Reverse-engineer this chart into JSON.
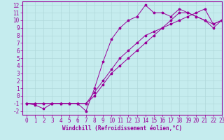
{
  "xlabel": "Windchill (Refroidissement éolien,°C)",
  "ylabel": "",
  "xlim": [
    -0.5,
    23
  ],
  "ylim": [
    -2.5,
    12.5
  ],
  "xticks": [
    0,
    1,
    2,
    3,
    4,
    5,
    6,
    7,
    8,
    9,
    10,
    11,
    12,
    13,
    14,
    15,
    16,
    17,
    18,
    19,
    20,
    21,
    22,
    23
  ],
  "yticks": [
    -2,
    -1,
    0,
    1,
    2,
    3,
    4,
    5,
    6,
    7,
    8,
    9,
    10,
    11,
    12
  ],
  "bg_color": "#c5ecee",
  "line_color": "#990099",
  "grid_color": "#b0d8da",
  "line1_x": [
    0,
    1,
    2,
    3,
    4,
    5,
    6,
    7,
    8,
    9,
    10,
    11,
    12,
    13,
    14,
    15,
    16,
    17,
    18,
    19,
    20,
    21,
    22,
    23
  ],
  "line1_y": [
    -1,
    -1.2,
    -1.7,
    -1,
    -1,
    -1,
    -1,
    -2,
    1,
    4.5,
    7.5,
    9,
    10,
    10.5,
    12,
    11,
    11,
    10.5,
    11.5,
    11,
    10.5,
    10,
    9.5,
    10
  ],
  "line2_x": [
    0,
    1,
    2,
    3,
    4,
    5,
    6,
    7,
    8,
    9,
    10,
    11,
    12,
    13,
    14,
    15,
    16,
    17,
    18,
    19,
    20,
    21,
    22,
    23
  ],
  "line2_y": [
    -1,
    -1,
    -1,
    -1,
    -1,
    -1,
    -1,
    -1,
    0,
    1.5,
    3,
    4,
    5,
    6,
    7,
    8,
    9,
    9.5,
    10,
    10.5,
    11,
    11.5,
    9.5,
    10
  ],
  "line3_x": [
    0,
    1,
    2,
    3,
    4,
    5,
    6,
    7,
    8,
    9,
    10,
    11,
    12,
    13,
    14,
    15,
    16,
    17,
    18,
    19,
    20,
    21,
    22,
    23
  ],
  "line3_y": [
    -1,
    -1,
    -1,
    -1,
    -1,
    -1,
    -1,
    -1,
    0.5,
    2,
    3.5,
    5,
    6,
    7,
    8,
    8.5,
    9,
    10,
    11,
    11,
    10.5,
    10,
    9,
    10
  ],
  "tick_fontsize": 5.5,
  "xlabel_fontsize": 5.5,
  "marker_size": 2.5,
  "line_width": 0.7
}
